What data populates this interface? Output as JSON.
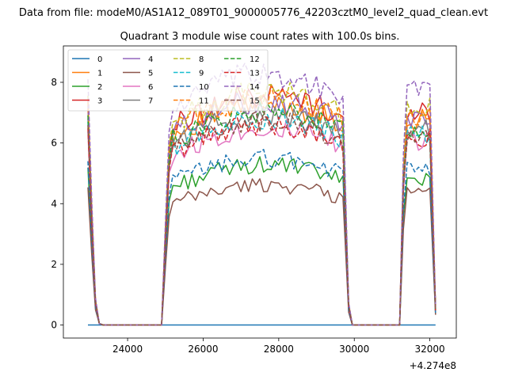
{
  "chart_data": {
    "type": "line",
    "suptitle": "Data from file: modeM0/AS1A12_089T01_9000005776_42203cztM0_level2_quad_clean.evt",
    "title": "Quadrant 3 module wise count rates with 100.0s bins.",
    "xlabel": "",
    "ylabel": "",
    "x_offset_label": "+4.274e8",
    "x_offset": 427400000,
    "xlim": [
      22300,
      32700
    ],
    "ylim": [
      -0.43,
      9.2
    ],
    "xticks": [
      24000,
      26000,
      28000,
      30000,
      32000
    ],
    "xtick_labels": [
      "24000",
      "26000",
      "28000",
      "30000",
      "32000"
    ],
    "yticks": [
      0,
      2,
      4,
      6,
      8
    ],
    "ytick_labels": [
      "0",
      "2",
      "4",
      "6",
      "8"
    ],
    "grid": false,
    "legend_position": "upper-left",
    "legend_columns": 4,
    "x_segments": [
      [
        22950,
        23250
      ],
      [
        24900,
        29850
      ],
      [
        31200,
        32150
      ]
    ],
    "series": [
      {
        "name": "0",
        "color": "#1f77b4",
        "dash": "solid",
        "level": 0.0
      },
      {
        "name": "1",
        "color": "#ff7f0e",
        "dash": "solid",
        "level": 6.6
      },
      {
        "name": "2",
        "color": "#2ca02c",
        "dash": "solid",
        "level": 4.8
      },
      {
        "name": "3",
        "color": "#d62728",
        "dash": "solid",
        "level": 6.9
      },
      {
        "name": "4",
        "color": "#9467bd",
        "dash": "solid",
        "level": 6.7
      },
      {
        "name": "5",
        "color": "#8c564b",
        "dash": "solid",
        "level": 4.2
      },
      {
        "name": "6",
        "color": "#e377c2",
        "dash": "solid",
        "level": 5.9
      },
      {
        "name": "7",
        "color": "#7f7f7f",
        "dash": "solid",
        "level": 6.3
      },
      {
        "name": "8",
        "color": "#bcbd22",
        "dash": "dashed",
        "level": 7.0
      },
      {
        "name": "9",
        "color": "#17becf",
        "dash": "dashed",
        "level": 6.2
      },
      {
        "name": "10",
        "color": "#1f77b4",
        "dash": "dashed",
        "level": 5.0
      },
      {
        "name": "11",
        "color": "#ff7f0e",
        "dash": "dashed",
        "level": 6.8
      },
      {
        "name": "12",
        "color": "#2ca02c",
        "dash": "dashed",
        "level": 6.4
      },
      {
        "name": "13",
        "color": "#d62728",
        "dash": "dashed",
        "level": 6.0
      },
      {
        "name": "14",
        "color": "#9467bd",
        "dash": "dashed",
        "level": 7.5
      },
      {
        "name": "15",
        "color": "#8c564b",
        "dash": "dashed",
        "level": 6.1
      }
    ]
  }
}
